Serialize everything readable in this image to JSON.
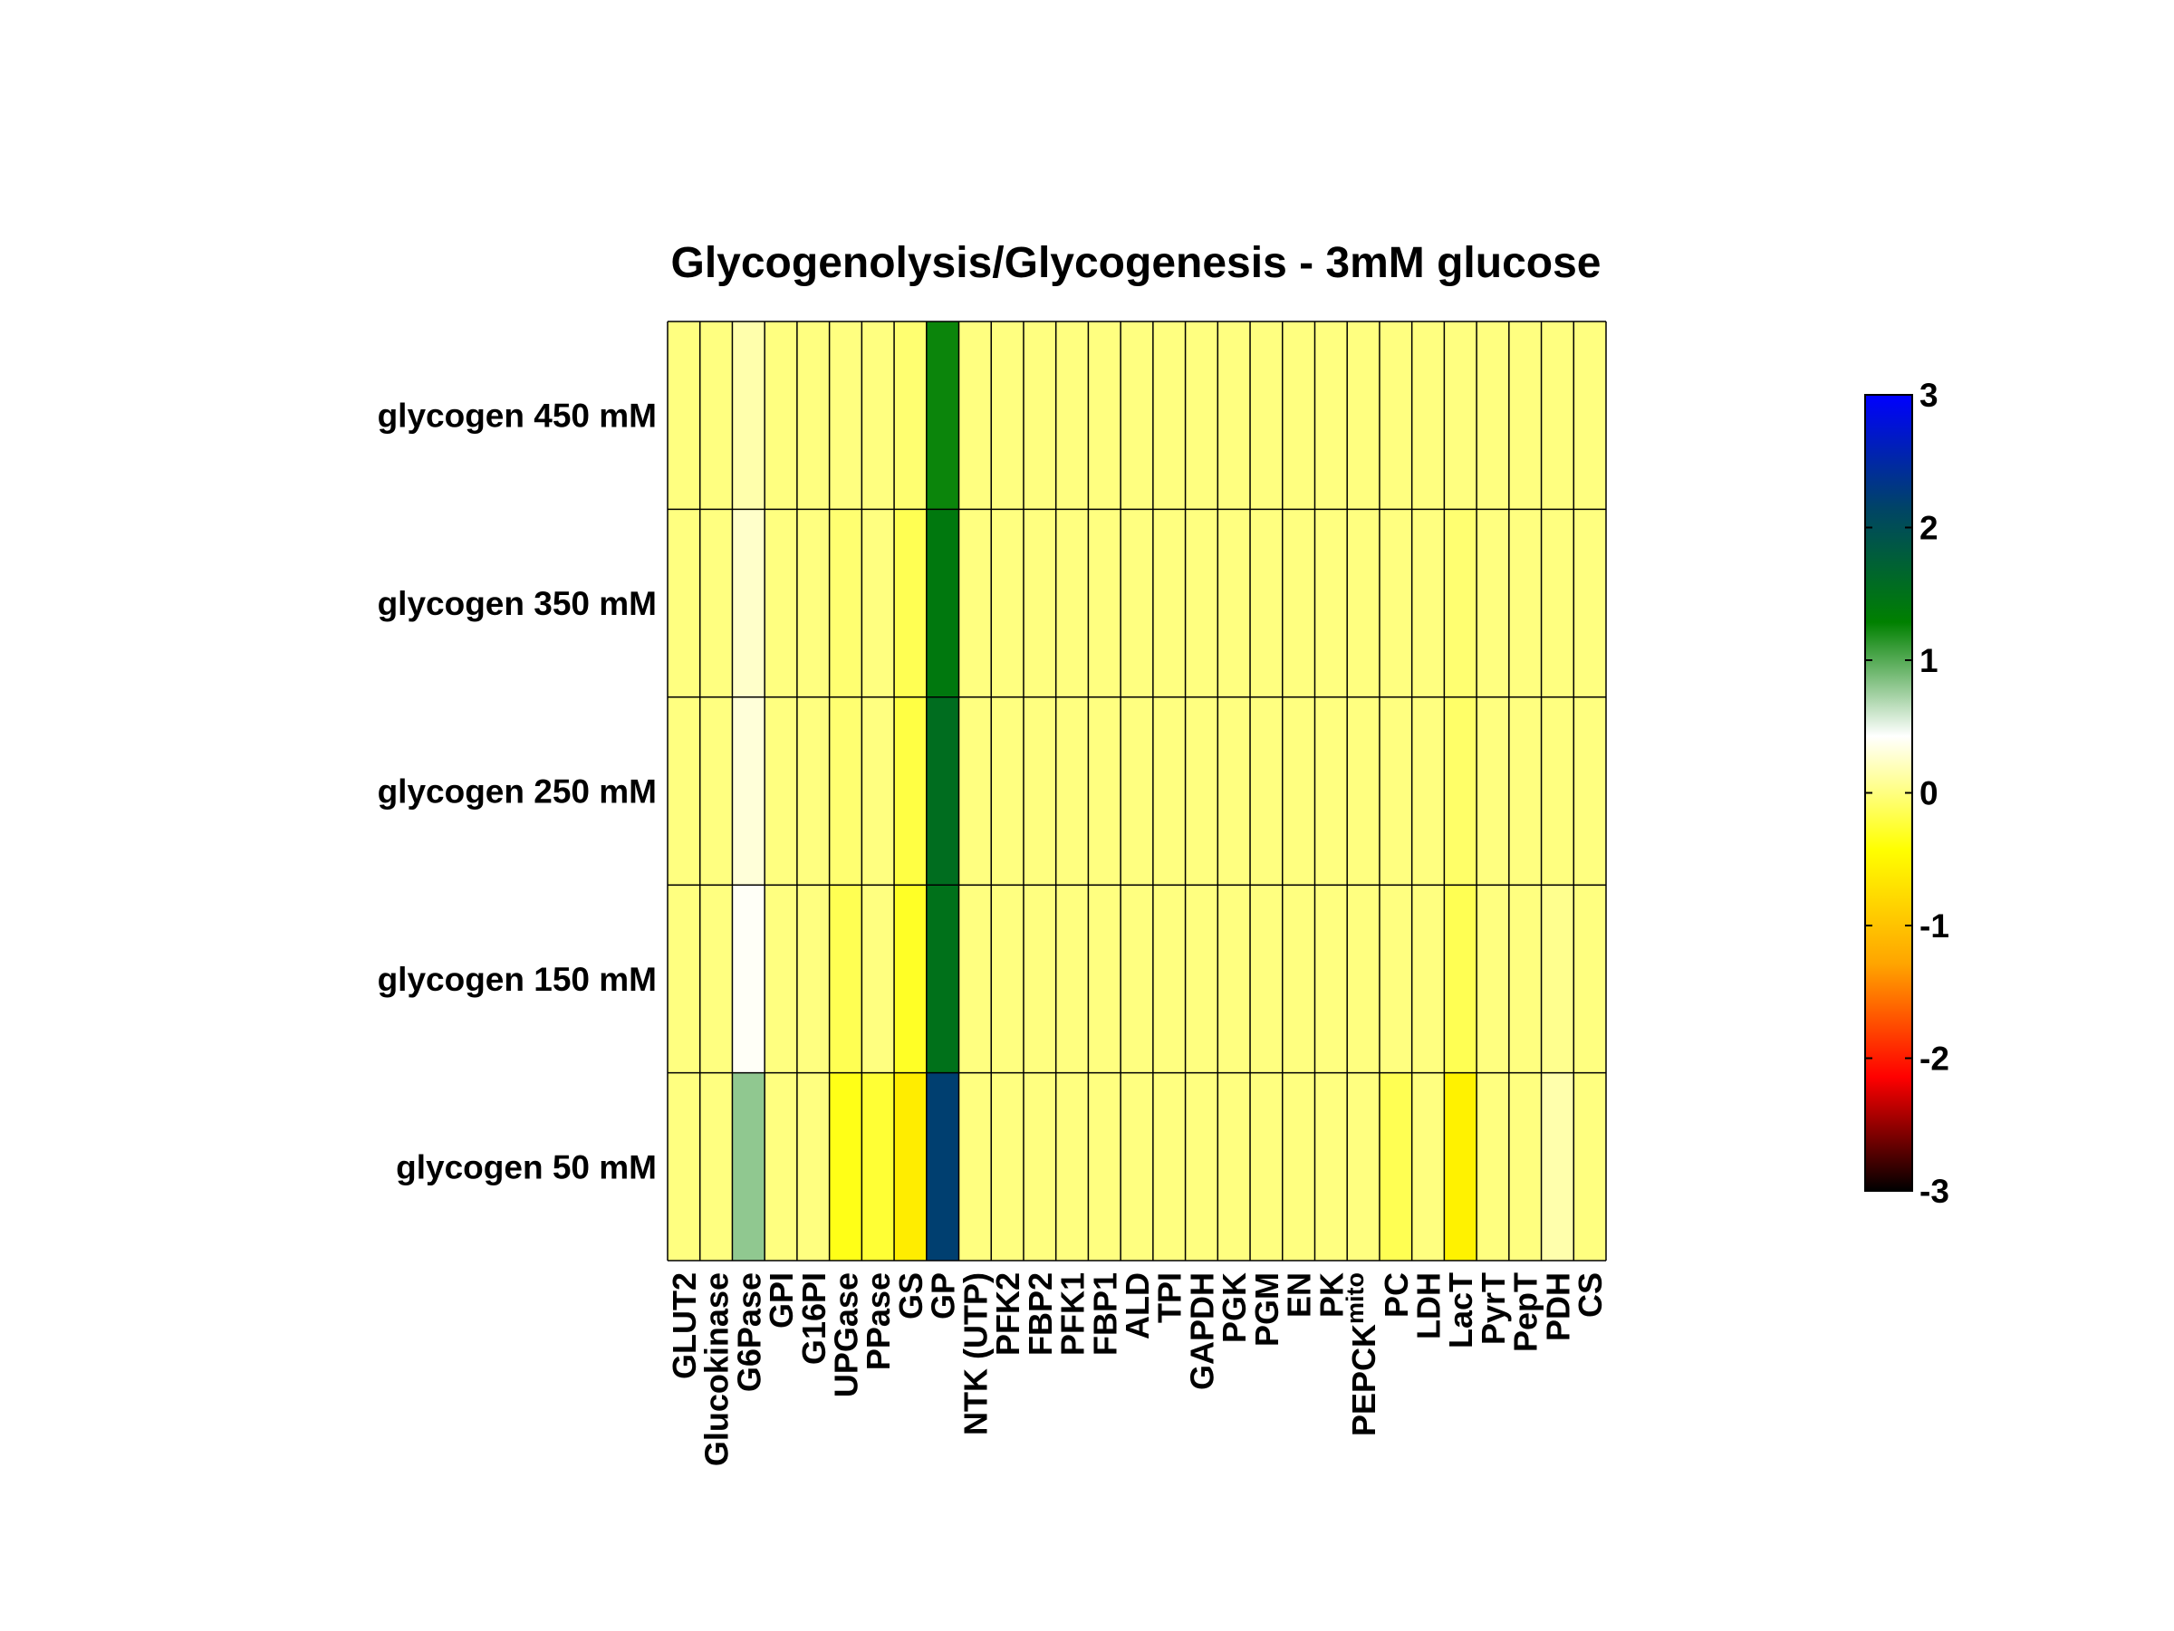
{
  "chart_data": {
    "type": "heatmap",
    "title": "Glycogenolysis/Glycogenesis - 3mM glucose",
    "rows": [
      "glycogen 450 mM",
      "glycogen 350 mM",
      "glycogen 250 mM",
      "glycogen 150 mM",
      "glycogen 50 mM"
    ],
    "columns": [
      {
        "label": "GLUT2"
      },
      {
        "label": "Glucokinase"
      },
      {
        "label": "G6Pase"
      },
      {
        "label": "GPI"
      },
      {
        "label": "G16PI"
      },
      {
        "label": "UPGase"
      },
      {
        "label": "PPase"
      },
      {
        "label": "GS"
      },
      {
        "label": "GP"
      },
      {
        "label": "NTK (UTP)"
      },
      {
        "label": "PFK2"
      },
      {
        "label": "FBP2"
      },
      {
        "label": "PFK1"
      },
      {
        "label": "FBP1"
      },
      {
        "label": "ALD"
      },
      {
        "label": "TPI"
      },
      {
        "label": "GAPDH"
      },
      {
        "label": "PGK"
      },
      {
        "label": "PGM"
      },
      {
        "label": "EN"
      },
      {
        "label": "PK"
      },
      {
        "label": "PEPCK",
        "subscript": "mito"
      },
      {
        "label": "PC"
      },
      {
        "label": "LDH"
      },
      {
        "label": "LacT"
      },
      {
        "label": "PyrT"
      },
      {
        "label": "PepT"
      },
      {
        "label": "PDH"
      },
      {
        "label": "CS"
      }
    ],
    "values": [
      [
        0,
        0,
        0.15,
        0,
        0,
        0,
        0,
        -0.05,
        1.25,
        0,
        0,
        0,
        0,
        0,
        0,
        0,
        0,
        0,
        0,
        0,
        0,
        0,
        0,
        0,
        0,
        0,
        0,
        0,
        0
      ],
      [
        0,
        0,
        0.25,
        0,
        0,
        -0.05,
        0,
        -0.15,
        1.4,
        0,
        0,
        0,
        0,
        0,
        0,
        0,
        0,
        0,
        0,
        0,
        0,
        0,
        0,
        0,
        -0.05,
        0,
        0,
        0,
        0
      ],
      [
        0,
        0,
        0.3,
        0,
        0,
        -0.05,
        0,
        -0.2,
        1.55,
        0,
        0,
        0,
        0,
        0,
        0,
        0,
        0,
        0,
        0,
        0,
        0,
        0,
        0,
        0,
        -0.08,
        0,
        0,
        0,
        0
      ],
      [
        0,
        0,
        0.4,
        0,
        0,
        -0.15,
        0,
        -0.3,
        1.5,
        0,
        0,
        0,
        0,
        0,
        0,
        0,
        0,
        0,
        0,
        0,
        0,
        0,
        0,
        0,
        -0.15,
        0,
        0,
        0.05,
        0
      ],
      [
        0,
        0,
        0.8,
        0,
        0,
        -0.35,
        -0.25,
        -0.6,
        2.2,
        0,
        0,
        0,
        0,
        0,
        0,
        0,
        0,
        0,
        0,
        0,
        0,
        0,
        -0.15,
        0,
        -0.55,
        0,
        0,
        0.15,
        0
      ]
    ],
    "colorbar": {
      "range": [
        -3,
        3
      ],
      "ticks": [
        "3",
        "2",
        "1",
        "0",
        "-1",
        "-2",
        "-3"
      ],
      "colors": [
        "#000000",
        "#ff0000",
        "#ffa500",
        "#ffff00",
        "#ffffff",
        "#008000",
        "#004466",
        "#0000ff"
      ]
    },
    "grid": true
  }
}
